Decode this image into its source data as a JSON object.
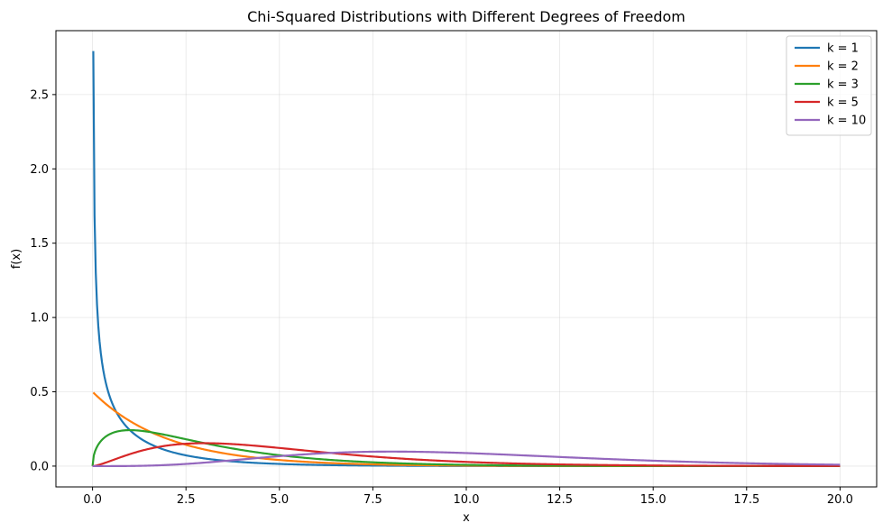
{
  "chart_data": {
    "type": "line",
    "title": "Chi-Squared Distributions with Different Degrees of Freedom",
    "xlabel": "x",
    "ylabel": "f(x)",
    "xlim": [
      -0.98,
      20.98
    ],
    "ylim": [
      -0.14,
      2.93
    ],
    "xticks": [
      0.0,
      2.5,
      5.0,
      7.5,
      10.0,
      12.5,
      15.0,
      17.5,
      20.0
    ],
    "xtick_labels": [
      "0.0",
      "2.5",
      "5.0",
      "7.5",
      "10.0",
      "12.5",
      "15.0",
      "17.5",
      "20.0"
    ],
    "yticks": [
      0.0,
      0.5,
      1.0,
      1.5,
      2.0,
      2.5
    ],
    "ytick_labels": [
      "0.0",
      "0.5",
      "1.0",
      "1.5",
      "2.0",
      "2.5"
    ],
    "grid": true,
    "legend_position": "top-right",
    "x_range": [
      0.02,
      20
    ],
    "series": [
      {
        "name": "k = 1",
        "color": "#1f77b4",
        "k": 1
      },
      {
        "name": "k = 2",
        "color": "#ff7f0e",
        "k": 2
      },
      {
        "name": "k = 3",
        "color": "#2ca02c",
        "k": 3
      },
      {
        "name": "k = 5",
        "color": "#d62728",
        "k": 5
      },
      {
        "name": "k = 10",
        "color": "#9467bd",
        "k": 10
      }
    ]
  }
}
